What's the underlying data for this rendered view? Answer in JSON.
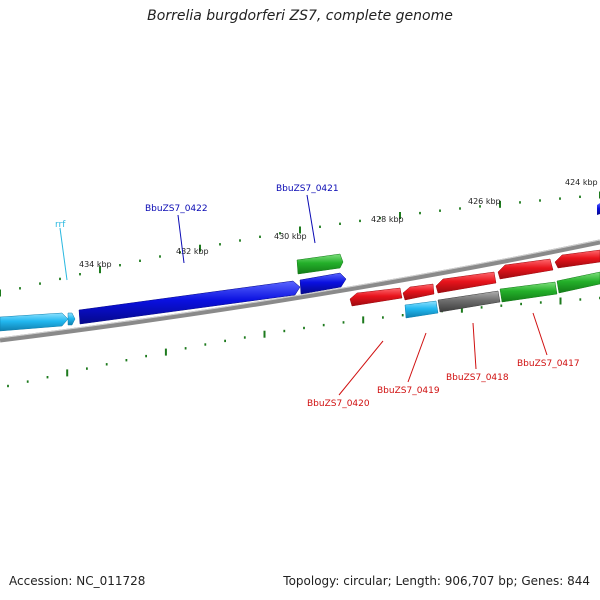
{
  "title": "Borrelia burgdorferi ZS7, complete genome",
  "footer": {
    "accession": "Accession: NC_011728",
    "summary": "Topology: circular; Length: 906,707 bp; Genes: 844"
  },
  "colors": {
    "blue": "#0a10e0",
    "cyan": "#22b8f0",
    "red": "#e8141c",
    "green": "#24b02a",
    "gray": "#6e6e6e",
    "tick": "#1d7a1d",
    "backbone": "#8a8a8a",
    "label_blue": "#0a0ab4",
    "label_red": "#d01010",
    "label_cyan": "#2ab8e0"
  },
  "scale_labels": [
    "424 kbp",
    "426 kbp",
    "428 kbp",
    "430 kbp",
    "432 kbp",
    "434 kbp"
  ],
  "gene_labels": {
    "rrf": "rrf",
    "g0422": "BbuZS7_0422",
    "g0421": "BbuZS7_0421",
    "g0420": "BbuZS7_0420",
    "g0419": "BbuZS7_0419",
    "g0418": "BbuZS7_0418",
    "g0417": "BbuZS7_0417"
  }
}
